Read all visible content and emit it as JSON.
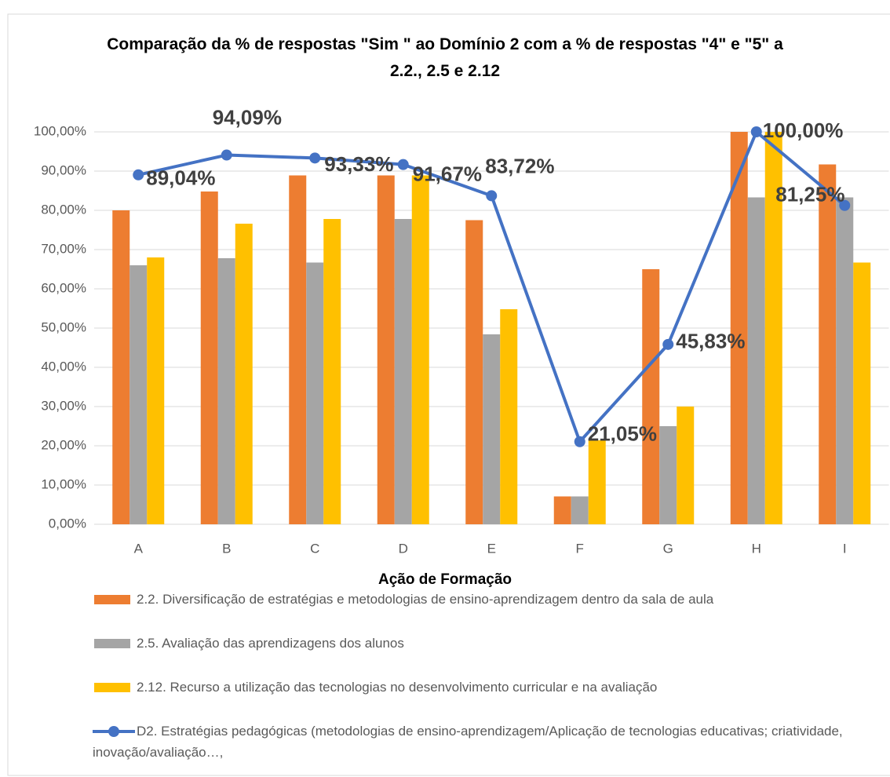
{
  "chart_data": {
    "type": "bar_line",
    "title": "Comparação da % de respostas \"Sim \" ao Domínio 2 com a % de respostas \"4\" e \"5\" a 2.2., 2.5 e 2.12",
    "x_label": "Ação de Formação",
    "categories": [
      "A",
      "B",
      "C",
      "D",
      "E",
      "F",
      "G",
      "H",
      "I"
    ],
    "series": [
      {
        "name": "2.2. Diversificação de estratégias e metodologias de ensino-aprendizagem dentro da sala de aula",
        "type": "bar",
        "color": "#ed7d31",
        "values": [
          80,
          84.8,
          88.9,
          88.9,
          77.5,
          7.1,
          65,
          100,
          91.7
        ]
      },
      {
        "name": "2.5. Avaliação das aprendizagens dos alunos",
        "type": "bar",
        "color": "#a5a5a5",
        "values": [
          66,
          67.8,
          66.7,
          77.8,
          48.4,
          7.1,
          25,
          83.3,
          83.3
        ]
      },
      {
        "name": "2.12. Recurso a utilização das tecnologias no desenvolvimento curricular e na avaliação",
        "type": "bar",
        "color": "#ffc000",
        "values": [
          68,
          76.6,
          77.8,
          88.9,
          54.8,
          21.4,
          30,
          100,
          66.7
        ]
      },
      {
        "name": "D2. Estratégias pedagógicas (metodologias de ensino-aprendizagem/Aplicação de tecnologias educativas; criatividade, inovação/avaliação…,",
        "type": "line",
        "color": "#4472c4",
        "values": [
          89.04,
          94.09,
          93.33,
          91.67,
          83.72,
          21.05,
          45.83,
          100,
          81.25
        ],
        "value_labels": [
          "89,04%",
          "94,09%",
          "93,33%",
          "91,67%",
          "83,72%",
          "21,05%",
          "45,83%",
          "100,00%",
          "81,25%"
        ]
      }
    ],
    "ylim": [
      0,
      100
    ],
    "yticks": [
      {
        "value": 0,
        "label": "0,00%"
      },
      {
        "value": 10,
        "label": "10,00%"
      },
      {
        "value": 20,
        "label": "20,00%"
      },
      {
        "value": 30,
        "label": "30,00%"
      },
      {
        "value": 40,
        "label": "40,00%"
      },
      {
        "value": 50,
        "label": "50,00%"
      },
      {
        "value": 60,
        "label": "60,00%"
      },
      {
        "value": 70,
        "label": "70,00%"
      },
      {
        "value": 80,
        "label": "80,00%"
      },
      {
        "value": 90,
        "label": "90,00%"
      },
      {
        "value": 100,
        "label": "100,00%"
      }
    ],
    "grid": true
  }
}
